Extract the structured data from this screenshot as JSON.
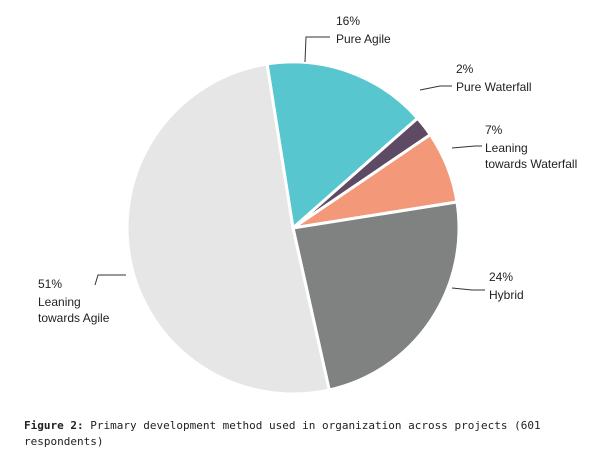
{
  "chart_data": {
    "type": "pie",
    "slices": [
      {
        "label": "Pure Agile",
        "value": 16,
        "value_text": "16%",
        "color": "#58c6cf"
      },
      {
        "label": "Pure Waterfall",
        "value": 2,
        "value_text": "2%",
        "color": "#5e4a64"
      },
      {
        "label": "Leaning towards Waterfall",
        "value": 7,
        "value_text": "7%",
        "color": "#f4987a"
      },
      {
        "label": "Hybrid",
        "value": 24,
        "value_text": "24%",
        "color": "#7f8280"
      },
      {
        "label": "Leaning towards Agile",
        "value": 51,
        "value_text": "51%",
        "color": "#e6e6e6"
      }
    ],
    "legend": "none",
    "labels": "outside-with-leader-lines"
  },
  "caption": {
    "figure_label": "Figure 2:",
    "text": "Primary development method used in organization across projects (601 respondents)"
  }
}
